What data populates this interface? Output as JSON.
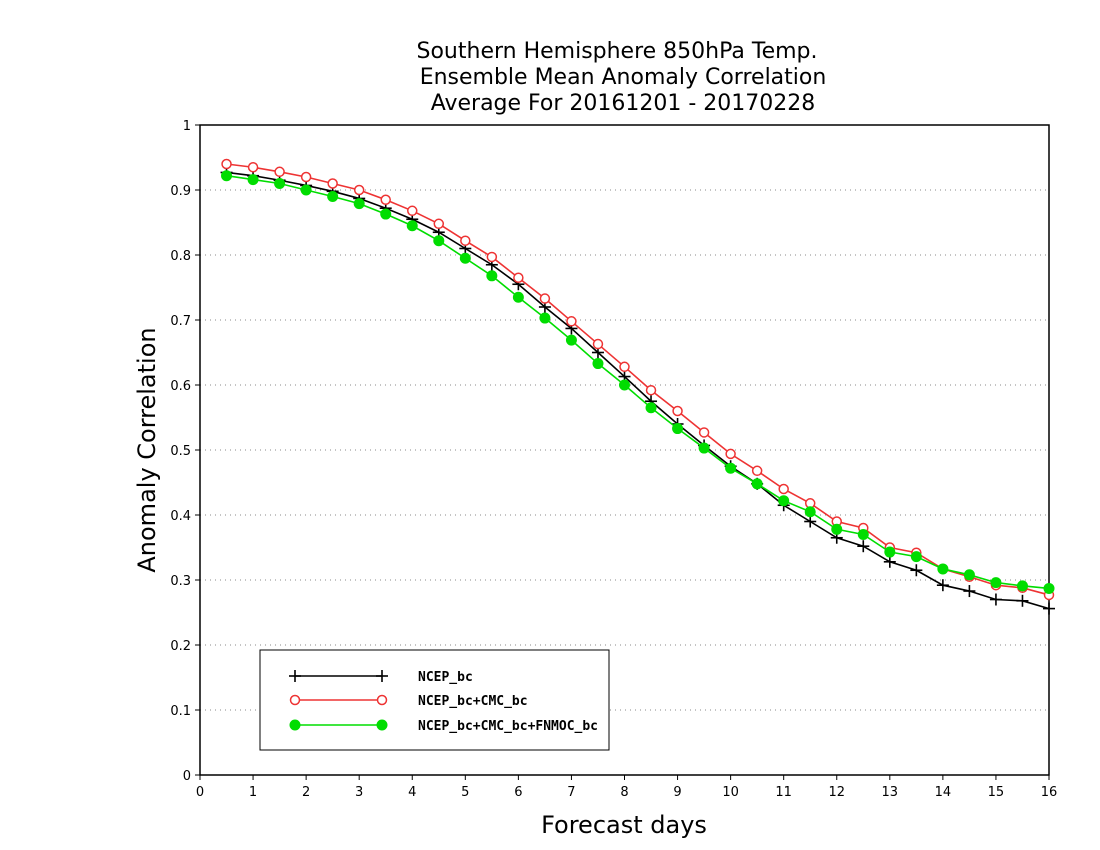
{
  "chart_data": {
    "type": "line",
    "title_lines": [
      "Southern Hemisphere 850hPa Temp.",
      "Ensemble Mean Anomaly Correlation",
      "Average For 20161201 - 20170228"
    ],
    "xlabel": "Forecast days",
    "ylabel": "Anomaly Correlation",
    "xlim": [
      0,
      16
    ],
    "ylim": [
      0,
      1
    ],
    "xticks": [
      0,
      1,
      2,
      3,
      4,
      5,
      6,
      7,
      8,
      9,
      10,
      11,
      12,
      13,
      14,
      15,
      16
    ],
    "xtick_labels": [
      "0",
      "1",
      "2",
      "3",
      "4",
      "5",
      "6",
      "7",
      "8",
      "9",
      "10",
      "11",
      "12",
      "13",
      "14",
      "15",
      "16"
    ],
    "yticks": [
      0,
      0.1,
      0.2,
      0.3,
      0.4,
      0.5,
      0.6,
      0.7,
      0.8,
      0.9,
      1
    ],
    "ytick_labels": [
      "0",
      "0.1",
      "0.2",
      "0.3",
      "0.4",
      "0.5",
      "0.6",
      "0.7",
      "0.8",
      "0.9",
      "1"
    ],
    "grid": "horizontal dotted",
    "legend_position": "bottom-left",
    "x": [
      0.5,
      1,
      1.5,
      2,
      2.5,
      3,
      3.5,
      4,
      4.5,
      5,
      5.5,
      6,
      6.5,
      7,
      7.5,
      8,
      8.5,
      9,
      9.5,
      10,
      10.5,
      11,
      11.5,
      12,
      12.5,
      13,
      13.5,
      14,
      14.5,
      15,
      15.5,
      16
    ],
    "series": [
      {
        "name": "NCEP_bc",
        "color": "#000000",
        "marker": "plus",
        "values": [
          0.927,
          0.922,
          0.915,
          0.907,
          0.898,
          0.887,
          0.872,
          0.855,
          0.835,
          0.81,
          0.785,
          0.755,
          0.72,
          0.687,
          0.65,
          0.613,
          0.575,
          0.54,
          0.507,
          0.475,
          0.448,
          0.415,
          0.39,
          0.365,
          0.352,
          0.328,
          0.315,
          0.292,
          0.283,
          0.27,
          0.268,
          0.256
        ]
      },
      {
        "name": "NCEP_bc+CMC_bc",
        "color": "#ee3333",
        "marker": "open-circle",
        "values": [
          0.94,
          0.935,
          0.928,
          0.92,
          0.91,
          0.9,
          0.885,
          0.868,
          0.848,
          0.822,
          0.797,
          0.765,
          0.733,
          0.698,
          0.663,
          0.628,
          0.592,
          0.56,
          0.527,
          0.494,
          0.468,
          0.44,
          0.418,
          0.39,
          0.38,
          0.35,
          0.342,
          0.317,
          0.305,
          0.292,
          0.288,
          0.277
        ]
      },
      {
        "name": "NCEP_bc+CMC_bc+FNMOC_bc",
        "color": "#00dd00",
        "marker": "filled-circle",
        "values": [
          0.922,
          0.916,
          0.91,
          0.9,
          0.89,
          0.879,
          0.863,
          0.845,
          0.822,
          0.795,
          0.768,
          0.735,
          0.703,
          0.669,
          0.633,
          0.6,
          0.565,
          0.533,
          0.503,
          0.472,
          0.448,
          0.422,
          0.405,
          0.378,
          0.37,
          0.343,
          0.336,
          0.317,
          0.308,
          0.296,
          0.291,
          0.287
        ]
      }
    ]
  }
}
